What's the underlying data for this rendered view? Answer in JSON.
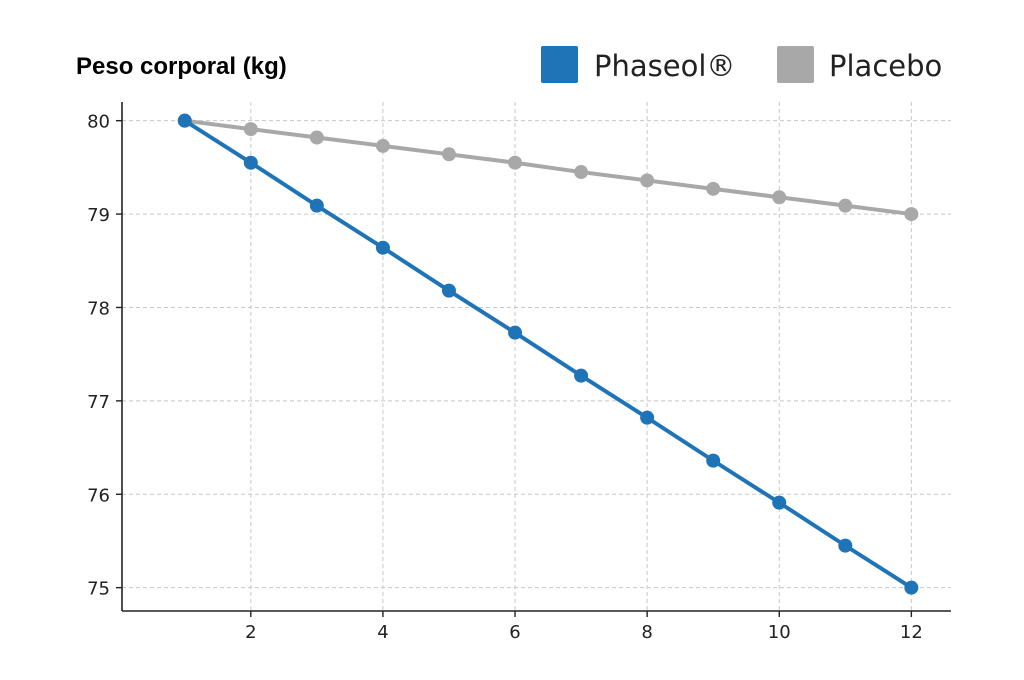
{
  "chart_data": {
    "type": "line",
    "title": "Peso corporal (kg)",
    "xlabel": "",
    "ylabel": "",
    "x": [
      1,
      2,
      3,
      4,
      5,
      6,
      7,
      8,
      9,
      10,
      11,
      12
    ],
    "xlim": [
      0.05,
      12.6
    ],
    "ylim": [
      74.75,
      80.2
    ],
    "xticks": [
      2,
      4,
      6,
      8,
      10,
      12
    ],
    "yticks": [
      75,
      76,
      77,
      78,
      79,
      80
    ],
    "grid": true,
    "legend_position": "top-right",
    "series": [
      {
        "name": "Phaseol®",
        "color": "#1f74b8",
        "values": [
          80.0,
          79.55,
          79.09,
          78.64,
          78.18,
          77.73,
          77.27,
          76.82,
          76.36,
          75.91,
          75.45,
          75.0
        ]
      },
      {
        "name": "Placebo",
        "color": "#a8a8a8",
        "values": [
          80.0,
          79.91,
          79.82,
          79.73,
          79.64,
          79.55,
          79.45,
          79.36,
          79.27,
          79.18,
          79.09,
          79.0
        ]
      }
    ]
  }
}
